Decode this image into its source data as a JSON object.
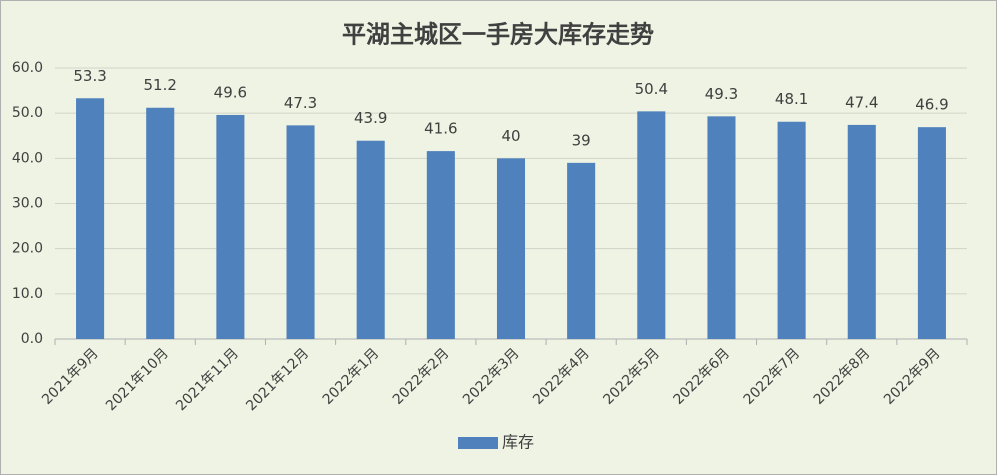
{
  "chart_data": {
    "type": "bar",
    "title": "平湖主城区一手房大库存走势",
    "categories": [
      "2021年9月",
      "2021年10月",
      "2021年11月",
      "2021年12月",
      "2022年1月",
      "2022年2月",
      "2022年3月",
      "2022年4月",
      "2022年5月",
      "2022年6月",
      "2022年7月",
      "2022年8月",
      "2022年9月"
    ],
    "series": [
      {
        "name": "库存",
        "color": "#4f81bd",
        "values": [
          53.3,
          51.2,
          49.6,
          47.3,
          43.9,
          41.6,
          40,
          39,
          50.4,
          49.3,
          48.1,
          47.4,
          46.9
        ]
      }
    ],
    "ylim": [
      0,
      60
    ],
    "yticks": [
      {
        "value": 0,
        "label": "0.0"
      },
      {
        "value": 10,
        "label": "10.0"
      },
      {
        "value": 20,
        "label": "20.0"
      },
      {
        "value": 30,
        "label": "30.0"
      },
      {
        "value": 40,
        "label": "40.0"
      },
      {
        "value": 50,
        "label": "50.0"
      },
      {
        "value": 60,
        "label": "60.0"
      }
    ],
    "grid": true,
    "legend": "bottom"
  }
}
